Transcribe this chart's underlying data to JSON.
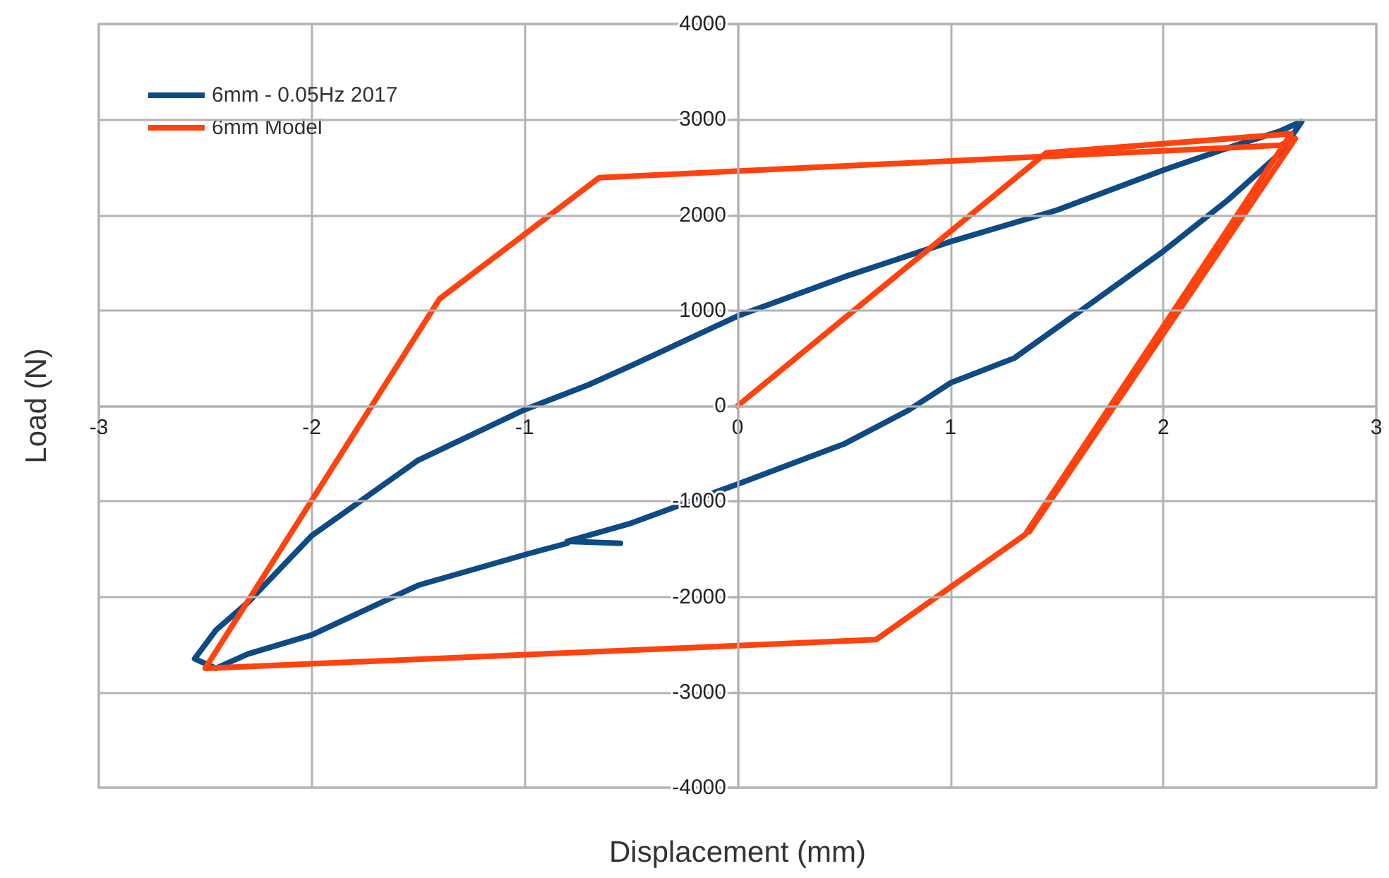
{
  "chart_data": {
    "type": "line",
    "xlabel": "Displacement (mm)",
    "ylabel": "Load (N)",
    "xlim": [
      -3,
      3
    ],
    "xticks": [
      -3,
      -2,
      -1,
      0,
      1,
      2,
      3
    ],
    "ylim": [
      -4000,
      4000
    ],
    "yticks": [
      -4000,
      -3000,
      -2000,
      -1000,
      0,
      1000,
      2000,
      3000,
      4000
    ],
    "grid": true,
    "legend": "top left",
    "marker": "none",
    "line_style": "solid",
    "series": [
      {
        "name": "6mm - 0.05Hz 2017",
        "color": "#0e4a84",
        "x": [
          -0.55,
          -0.8,
          -0.5,
          0,
          0.5,
          0.8,
          1,
          1.3,
          1.52,
          2,
          2.3,
          2.55,
          2.65,
          2.55,
          2.3,
          2,
          1.5,
          1,
          0.5,
          0,
          -0.5,
          -0.7,
          -1,
          -1.5,
          -2,
          -2.3,
          -2.45,
          -2.55,
          -2.45,
          -2.3,
          -2,
          -1.5,
          -1,
          -0.8
        ],
        "values": [
          -1440,
          -1420,
          -1230,
          -820,
          -400,
          -50,
          240,
          500,
          850,
          1620,
          2150,
          2650,
          2980,
          2880,
          2700,
          2470,
          2050,
          1720,
          1350,
          940,
          420,
          220,
          -40,
          -570,
          -1360,
          -2060,
          -2350,
          -2650,
          -2750,
          -2600,
          -2400,
          -1880,
          -1560,
          -1440
        ]
      },
      {
        "name": "6mm Model",
        "color": "#ff420e",
        "x": [
          0,
          1.45,
          2.6,
          1.35,
          0.65,
          -2.5,
          -1.4,
          -0.65,
          2.55,
          2.62,
          1.37
        ],
        "values": [
          0,
          2650,
          2850,
          -1350,
          -2450,
          -2750,
          1120,
          2390,
          2730,
          2800,
          -1320
        ]
      }
    ]
  }
}
